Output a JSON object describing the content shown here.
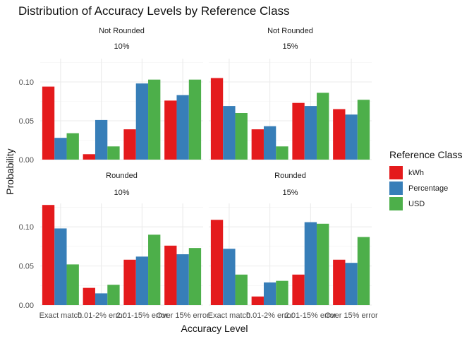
{
  "chart_data": {
    "type": "bar",
    "title": "Distribution of Accuracy Levels by Reference Class",
    "xlabel": "Accuracy Level",
    "ylabel": "Probability",
    "categories": [
      "Exact match",
      "0.01-2% error",
      "2.01-15% error",
      "Over 15% error"
    ],
    "y_ticks": [
      0.0,
      0.05,
      0.1
    ],
    "y_tick_labels": [
      "0.00",
      "0.05",
      "0.10"
    ],
    "ylim": [
      0,
      0.13
    ],
    "grid": true,
    "legend": {
      "title": "Reference Class",
      "position": "right",
      "entries": [
        "kWh",
        "Percentage",
        "USD"
      ],
      "colors": [
        "#E41A1C",
        "#377EB8",
        "#4DAF4A"
      ]
    },
    "panels": [
      {
        "strip_top": "Not Rounded",
        "strip_bottom": "10%",
        "series": [
          {
            "name": "kWh",
            "values": [
              0.094,
              0.007,
              0.039,
              0.076
            ]
          },
          {
            "name": "Percentage",
            "values": [
              0.028,
              0.051,
              0.098,
              0.083
            ]
          },
          {
            "name": "USD",
            "values": [
              0.034,
              0.017,
              0.103,
              0.103
            ]
          }
        ]
      },
      {
        "strip_top": "Not Rounded",
        "strip_bottom": "15%",
        "series": [
          {
            "name": "kWh",
            "values": [
              0.105,
              0.039,
              0.073,
              0.065
            ]
          },
          {
            "name": "Percentage",
            "values": [
              0.069,
              0.043,
              0.069,
              0.058
            ]
          },
          {
            "name": "USD",
            "values": [
              0.06,
              0.017,
              0.086,
              0.077
            ]
          }
        ]
      },
      {
        "strip_top": "Rounded",
        "strip_bottom": "10%",
        "series": [
          {
            "name": "kWh",
            "values": [
              0.128,
              0.022,
              0.058,
              0.076
            ]
          },
          {
            "name": "Percentage",
            "values": [
              0.098,
              0.015,
              0.062,
              0.065
            ]
          },
          {
            "name": "USD",
            "values": [
              0.052,
              0.026,
              0.09,
              0.073
            ]
          }
        ]
      },
      {
        "strip_top": "Rounded",
        "strip_bottom": "15%",
        "series": [
          {
            "name": "kWh",
            "values": [
              0.109,
              0.011,
              0.039,
              0.058
            ]
          },
          {
            "name": "Percentage",
            "values": [
              0.072,
              0.029,
              0.106,
              0.054
            ]
          },
          {
            "name": "USD",
            "values": [
              0.039,
              0.031,
              0.104,
              0.087
            ]
          }
        ]
      }
    ]
  }
}
